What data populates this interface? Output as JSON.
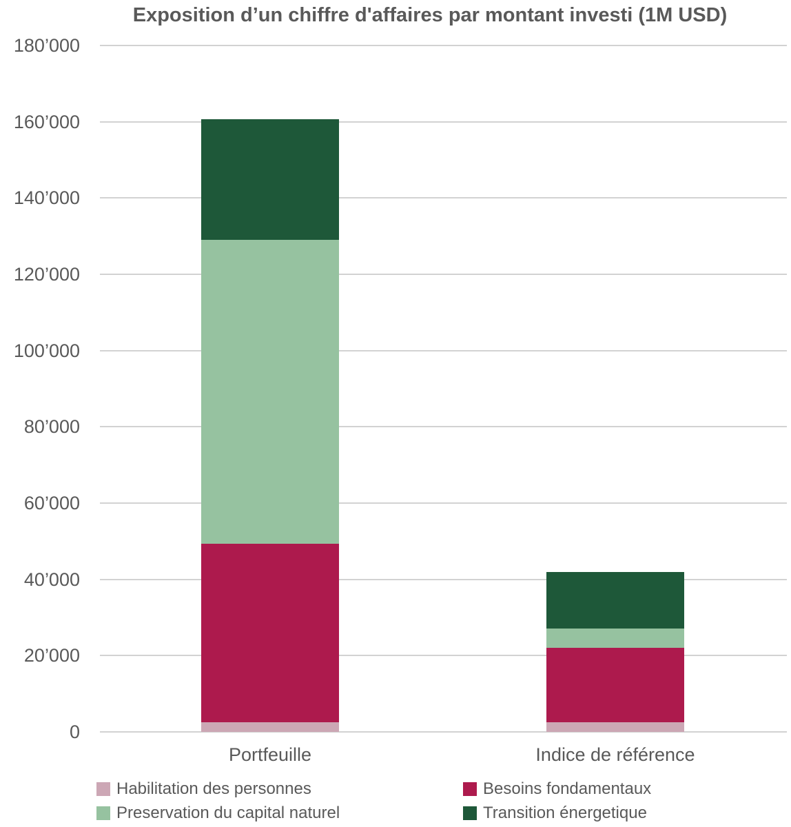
{
  "title": "Exposition d’un chiffre d'affaires par montant investi (1M USD)",
  "colors": {
    "text": "#595959",
    "gridline": "#d2d2d2",
    "background": "#ffffff"
  },
  "chart_data": {
    "type": "bar",
    "stacked": true,
    "title": "Exposition d’un chiffre d'affaires par montant investi (1M USD)",
    "categories": [
      "Portfeuille",
      "Indice de référence"
    ],
    "series": [
      {
        "name": "Habilitation des personnes",
        "color": "#cca7b5",
        "values": [
          2500,
          2500
        ]
      },
      {
        "name": "Besoins fondamentaux",
        "color": "#ad1a4d",
        "values": [
          46800,
          19500
        ]
      },
      {
        "name": "Preservation du capital naturel",
        "color": "#96c2a0",
        "values": [
          79800,
          5200
        ]
      },
      {
        "name": "Transition énergetique",
        "color": "#1e5839",
        "values": [
          31500,
          14800
        ]
      }
    ],
    "totals": [
      160600,
      42000
    ],
    "xlabel": "",
    "ylabel": "",
    "ylim": [
      0,
      180000
    ],
    "ytick_step": 20000,
    "ytick_labels": [
      "0",
      "20’000",
      "40’000",
      "60’000",
      "80’000",
      "100’000",
      "120’000",
      "140’000",
      "160’000",
      "180’000"
    ],
    "grid": "horizontal-only",
    "legend_position": "bottom-two-columns"
  }
}
